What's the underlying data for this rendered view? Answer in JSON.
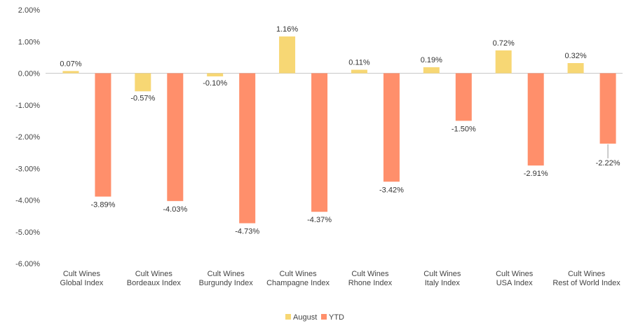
{
  "chart_data": {
    "type": "bar",
    "categories": [
      [
        "Cult Wines",
        "Global Index"
      ],
      [
        "Cult Wines",
        "Bordeaux Index"
      ],
      [
        "Cult Wines",
        "Burgundy Index"
      ],
      [
        "Cult Wines",
        "Champagne Index"
      ],
      [
        "Cult Wines",
        "Rhone Index"
      ],
      [
        "Cult Wines",
        "Italy Index"
      ],
      [
        "Cult Wines",
        "USA Index"
      ],
      [
        "Cult Wines",
        "Rest of World Index"
      ]
    ],
    "series": [
      {
        "name": "August",
        "color": "#F7D774",
        "values": [
          0.07,
          -0.57,
          -0.1,
          1.16,
          0.11,
          0.19,
          0.72,
          0.32
        ],
        "labels": [
          "0.07%",
          "-0.57%",
          "-0.10%",
          "1.16%",
          "0.11%",
          "0.19%",
          "0.72%",
          "0.32%"
        ]
      },
      {
        "name": "YTD",
        "color": "#FF8F6B",
        "values": [
          -3.89,
          -4.03,
          -4.73,
          -4.37,
          -3.42,
          -1.5,
          -2.91,
          -2.22
        ],
        "labels": [
          "-3.89%",
          "-4.03%",
          "-4.73%",
          "-4.37%",
          "-3.42%",
          "-1.50%",
          "-2.91%",
          "-2.22%"
        ]
      }
    ],
    "ylim": [
      -6,
      2
    ],
    "yticks": [
      2,
      1,
      0,
      -1,
      -2,
      -3,
      -4,
      -5,
      -6
    ],
    "ytick_labels": [
      "2.00%",
      "1.00%",
      "0.00%",
      "-1.00%",
      "-2.00%",
      "-3.00%",
      "-4.00%",
      "-5.00%",
      "-6.00%"
    ],
    "grid": false,
    "legend_position": "bottom"
  }
}
